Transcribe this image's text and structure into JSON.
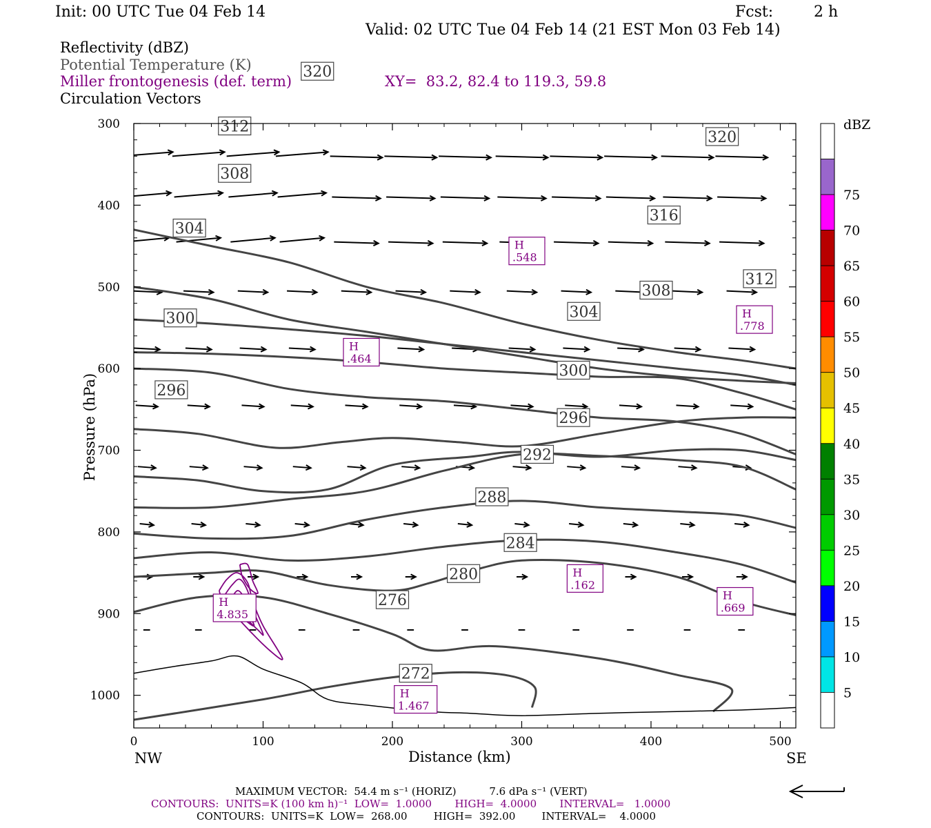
{
  "header": {
    "init": "Init: 00 UTC Tue 04 Feb 14",
    "fcst_label": "Fcst:",
    "fcst_value": "2 h",
    "valid": "Valid: 02 UTC Tue 04 Feb 14 (21 EST Mon 03 Feb 14)"
  },
  "legend": {
    "reflectivity": "Reflectivity (dBZ)",
    "theta": "Potential Temperature (K)",
    "frontogenesis": "Miller frontogenesis (def. term)",
    "xy": "XY=  83.2, 82.4 to 119.3, 59.8",
    "vectors": "Circulation Vectors"
  },
  "colors": {
    "theta_contour": "#444444",
    "frontogenesis": "#800080",
    "vector": "#000000"
  },
  "chart_data": {
    "type": "cross-section",
    "xlabel": "Distance (km)",
    "ylabel": "Pressure (hPa)",
    "xlim": [
      0,
      512
    ],
    "ylim": [
      1040,
      300
    ],
    "x_ticks": [
      "0",
      "100",
      "200",
      "300",
      "400",
      "500"
    ],
    "y_ticks": [
      "300",
      "400",
      "500",
      "600",
      "700",
      "800",
      "900",
      "1000"
    ],
    "left_end_label": "NW",
    "right_end_label": "SE",
    "theta_contours": [
      {
        "value": 272,
        "label": "272",
        "label_at": [
          218,
          973
        ],
        "points": [
          [
            0,
            1030
          ],
          [
            100,
            1005
          ],
          [
            150,
            990
          ],
          [
            200,
            978
          ],
          [
            250,
            972
          ],
          [
            290,
            976
          ],
          [
            310,
            990
          ],
          [
            308,
            1015
          ]
        ]
      },
      {
        "value": 276,
        "label": "276",
        "label_at": [
          200,
          883
        ],
        "points": [
          [
            0,
            898
          ],
          [
            50,
            880
          ],
          [
            100,
            880
          ],
          [
            150,
            900
          ],
          [
            200,
            925
          ],
          [
            230,
            945
          ],
          [
            280,
            940
          ],
          [
            360,
            955
          ],
          [
            420,
            975
          ],
          [
            462,
            992
          ],
          [
            448,
            1020
          ]
        ]
      },
      {
        "value": 280,
        "label": "280",
        "label_at": [
          255,
          851
        ],
        "points": [
          [
            0,
            855
          ],
          [
            60,
            850
          ],
          [
            100,
            848
          ],
          [
            150,
            865
          ],
          [
            200,
            872
          ],
          [
            230,
            862
          ],
          [
            260,
            848
          ],
          [
            300,
            835
          ],
          [
            360,
            838
          ],
          [
            420,
            855
          ],
          [
            470,
            885
          ],
          [
            512,
            902
          ]
        ]
      },
      {
        "value": 284,
        "label": "284",
        "label_at": [
          299,
          813
        ],
        "points": [
          [
            0,
            832
          ],
          [
            60,
            825
          ],
          [
            120,
            835
          ],
          [
            180,
            830
          ],
          [
            240,
            818
          ],
          [
            300,
            810
          ],
          [
            360,
            812
          ],
          [
            420,
            825
          ],
          [
            470,
            840
          ],
          [
            512,
            862
          ]
        ]
      },
      {
        "value": 288,
        "label": "288",
        "label_at": [
          277,
          757
        ],
        "points": [
          [
            0,
            802
          ],
          [
            60,
            808
          ],
          [
            120,
            805
          ],
          [
            180,
            785
          ],
          [
            240,
            770
          ],
          [
            300,
            762
          ],
          [
            360,
            770
          ],
          [
            420,
            775
          ],
          [
            470,
            780
          ],
          [
            512,
            795
          ]
        ]
      },
      {
        "value": 292,
        "label": "292",
        "label_at": [
          312,
          705
        ],
        "points": [
          [
            0,
            770
          ],
          [
            60,
            770
          ],
          [
            120,
            760
          ],
          [
            180,
            750
          ],
          [
            240,
            725
          ],
          [
            300,
            705
          ],
          [
            360,
            707
          ],
          [
            420,
            712
          ],
          [
            470,
            720
          ],
          [
            512,
            748
          ]
        ]
      },
      {
        "value": 296,
        "label": "296",
        "label_at": [
          340,
          660
        ],
        "points": [
          [
            0,
            732
          ],
          [
            50,
            737
          ],
          [
            100,
            750
          ],
          [
            150,
            748
          ],
          [
            200,
            718
          ],
          [
            260,
            708
          ],
          [
            300,
            702
          ],
          [
            360,
            708
          ],
          [
            420,
            700
          ],
          [
            470,
            700
          ],
          [
            512,
            712
          ]
        ]
      },
      {
        "value": 300,
        "label": "300",
        "label_at": [
          340,
          602
        ],
        "points": [
          [
            0,
            674
          ],
          [
            50,
            680
          ],
          [
            110,
            697
          ],
          [
            160,
            690
          ],
          [
            200,
            685
          ],
          [
            250,
            690
          ],
          [
            300,
            695
          ],
          [
            360,
            680
          ],
          [
            420,
            665
          ],
          [
            470,
            660
          ],
          [
            512,
            660
          ]
        ]
      },
      {
        "value": 304,
        "label": "304",
        "label_at": [
          348,
          530
        ],
        "points": [
          [
            0,
            600
          ],
          [
            60,
            605
          ],
          [
            120,
            625
          ],
          [
            180,
            635
          ],
          [
            240,
            640
          ],
          [
            300,
            650
          ],
          [
            360,
            660
          ],
          [
            420,
            665
          ],
          [
            470,
            680
          ],
          [
            512,
            705
          ]
        ]
      },
      {
        "value": 308,
        "label": "308",
        "label_at": [
          404,
          504
        ],
        "points": [
          [
            0,
            580
          ],
          [
            60,
            582
          ],
          [
            120,
            586
          ],
          [
            180,
            592
          ],
          [
            240,
            600
          ],
          [
            300,
            605
          ],
          [
            360,
            610
          ],
          [
            420,
            612
          ],
          [
            470,
            630
          ],
          [
            512,
            650
          ]
        ]
      },
      {
        "value": 312,
        "label": "312",
        "label_at": [
          484,
          490
        ],
        "points": [
          [
            0,
            540
          ],
          [
            60,
            545
          ],
          [
            120,
            552
          ],
          [
            180,
            560
          ],
          [
            240,
            570
          ],
          [
            300,
            580
          ],
          [
            360,
            590
          ],
          [
            420,
            600
          ],
          [
            470,
            608
          ],
          [
            512,
            620
          ]
        ]
      },
      {
        "value": 316,
        "label": "316",
        "label_at": [
          410,
          412
        ],
        "points": [
          [
            0,
            500
          ],
          [
            60,
            515
          ],
          [
            120,
            540
          ],
          [
            180,
            555
          ],
          [
            240,
            570
          ],
          [
            300,
            585
          ],
          [
            360,
            600
          ],
          [
            420,
            610
          ],
          [
            470,
            615
          ],
          [
            512,
            618
          ]
        ]
      },
      {
        "value": 320,
        "label": "320",
        "label_at": [
          455,
          316
        ],
        "points": [
          [
            0,
            430
          ],
          [
            60,
            450
          ],
          [
            120,
            470
          ],
          [
            180,
            500
          ],
          [
            240,
            520
          ],
          [
            300,
            545
          ],
          [
            360,
            565
          ],
          [
            420,
            580
          ],
          [
            470,
            590
          ],
          [
            512,
            600
          ]
        ]
      }
    ],
    "theta_labels_upper": [
      {
        "label": "304",
        "at": [
          43,
          428
        ]
      },
      {
        "label": "308",
        "at": [
          78,
          361
        ]
      },
      {
        "label": "312",
        "at": [
          78,
          303
        ]
      },
      {
        "label": "320",
        "at": [
          142,
          236
        ]
      },
      {
        "label": "300",
        "at": [
          36,
          538
        ]
      },
      {
        "label": "296",
        "at": [
          29,
          626
        ]
      }
    ],
    "frontogenesis_maxima": [
      {
        "label": "H",
        "value": "4.835",
        "at": [
          78,
          893
        ]
      },
      {
        "label": "H",
        "value": ".464",
        "at": [
          176,
          580
        ]
      },
      {
        "label": "H",
        "value": ".548",
        "at": [
          304,
          456
        ]
      },
      {
        "label": "H",
        "value": ".778",
        "at": [
          480,
          540
        ]
      },
      {
        "label": "H",
        "value": ".162",
        "at": [
          349,
          857
        ]
      },
      {
        "label": "H",
        "value": ".669",
        "at": [
          465,
          885
        ]
      },
      {
        "label": "H",
        "value": "1.467",
        "at": [
          218,
          1005
        ]
      }
    ],
    "colorbar": {
      "label": "dBZ",
      "levels": [
        "5",
        "10",
        "15",
        "20",
        "25",
        "30",
        "35",
        "40",
        "45",
        "50",
        "55",
        "60",
        "65",
        "70",
        "75"
      ],
      "colors": [
        "#ffffff",
        "#00e5e5",
        "#0099ff",
        "#0000ff",
        "#00ff00",
        "#00cc00",
        "#009900",
        "#008000",
        "#ffff00",
        "#e5c000",
        "#ff8c00",
        "#ff0000",
        "#d40000",
        "#b80000",
        "#ff00ff",
        "#9966cc",
        "#ffffff"
      ]
    },
    "grid": false
  },
  "footer": {
    "max_vector": "MAXIMUM VECTOR:  54.4 m s⁻¹ (HORIZ)          7.6 dPa s⁻¹ (VERT)",
    "contours_purple": "CONTOURS:  UNITS=K (100 km h)⁻¹  LOW=  1.0000       HIGH=  4.0000       INTERVAL=   1.0000",
    "contours_black": "CONTOURS:  UNITS=K  LOW=  268.00        HIGH=  392.00        INTERVAL=    4.0000"
  }
}
